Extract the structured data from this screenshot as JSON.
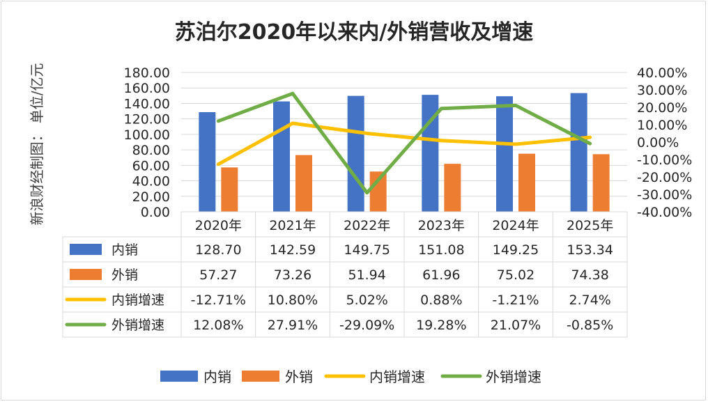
{
  "chart_data": {
    "type": "bar",
    "title": "苏泊尔2020年以来内/外销营收及增速",
    "ylabel": "新浪财经制图：  单位/亿元",
    "categories": [
      "2020年",
      "2021年",
      "2022年",
      "2023年",
      "2024年",
      "2025年"
    ],
    "ylim": [
      0,
      180
    ],
    "y_ticks": [
      "180.00",
      "160.00",
      "140.00",
      "120.00",
      "100.00",
      "80.00",
      "60.00",
      "40.00",
      "20.00",
      "0.00"
    ],
    "y2lim": [
      -40,
      40
    ],
    "y2_ticks": [
      "40.00%",
      "30.00%",
      "20.00%",
      "10.00%",
      "0.00%",
      "-10.00%",
      "-20.00%",
      "-30.00%",
      "-40.00%"
    ],
    "grid": true,
    "legend_position": "bottom",
    "series": [
      {
        "name": "内销",
        "kind": "bar",
        "axis": "left",
        "color": "#4472C4",
        "values": [
          128.7,
          142.59,
          149.75,
          151.08,
          149.25,
          153.34
        ],
        "labels": [
          "128.70",
          "142.59",
          "149.75",
          "151.08",
          "149.25",
          "153.34"
        ]
      },
      {
        "name": "外销",
        "kind": "bar",
        "axis": "left",
        "color": "#ED7D31",
        "values": [
          57.27,
          73.26,
          51.94,
          61.96,
          75.02,
          74.38
        ],
        "labels": [
          "57.27",
          "73.26",
          "51.94",
          "61.96",
          "75.02",
          "74.38"
        ]
      },
      {
        "name": "内销增速",
        "kind": "line",
        "axis": "right",
        "color": "#FFC000",
        "values": [
          -12.71,
          10.8,
          5.02,
          0.88,
          -1.21,
          2.74
        ],
        "labels": [
          "-12.71%",
          "10.80%",
          "5.02%",
          "0.88%",
          "-1.21%",
          "2.74%"
        ]
      },
      {
        "name": "外销增速",
        "kind": "line",
        "axis": "right",
        "color": "#70AD47",
        "values": [
          12.08,
          27.91,
          -29.09,
          19.28,
          21.07,
          -0.85
        ],
        "labels": [
          "12.08%",
          "27.91%",
          "-29.09%",
          "19.28%",
          "21.07%",
          "-0.85%"
        ]
      }
    ]
  }
}
